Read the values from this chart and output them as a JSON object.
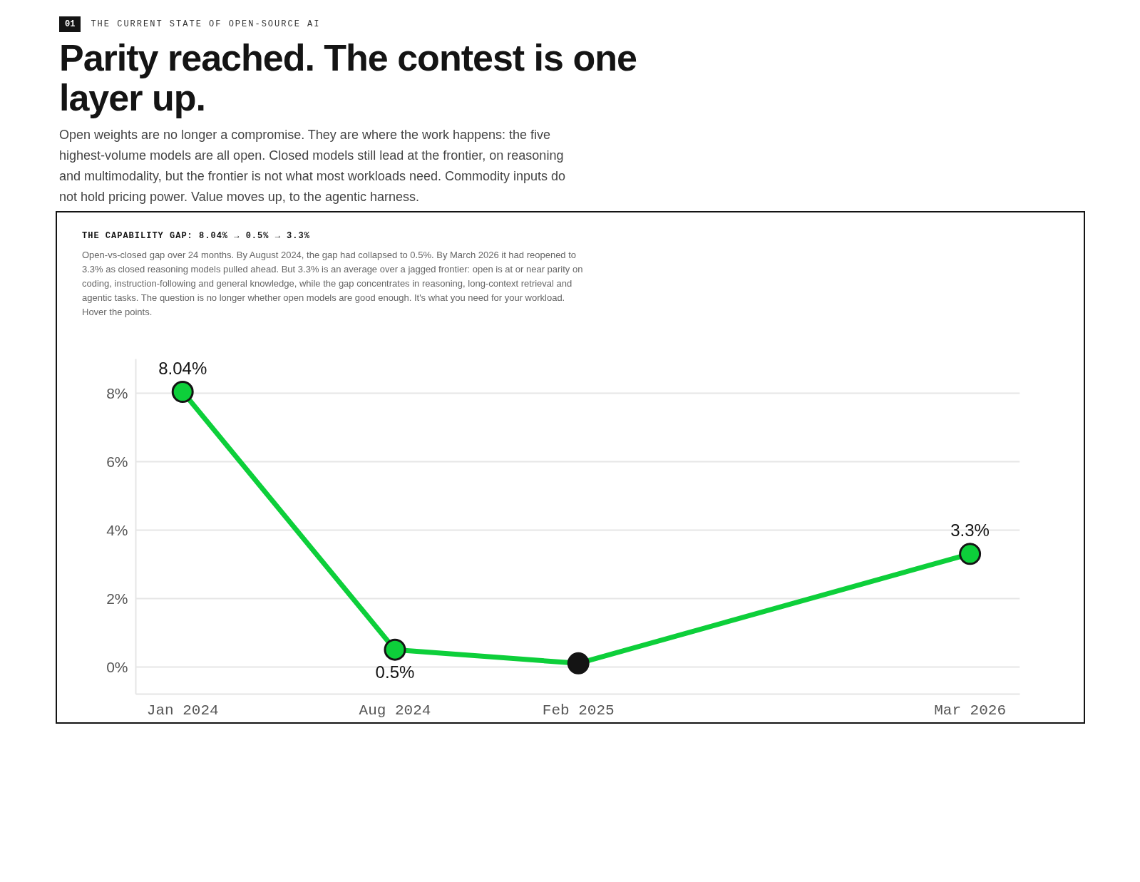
{
  "chart_data": {
    "type": "line",
    "title": "Parity reached. The contest is one layer up.",
    "subtitle": "Open weights are no longer a compromise. They are where the work happens: the five highest-volume models are all open. Closed models still lead at the frontier, on reasoning and multimodality, but the frontier is not what most workloads need. Commodity inputs do not hold pricing power. Value moves up, to the agentic harness.",
    "annotations": [
      "01",
      "THE CURRENT STATE OF OPEN-SOURCE AI",
      "THE CAPABILITY GAP: 8.04% → 0.5% → 3.3%",
      "Open-vs-closed gap over 24 months. By August 2024, the gap had collapsed to 0.5%. By March 2026 it had reopened to 3.3% as closed reasoning models pulled ahead. But 3.3% is an average over a jagged frontier: open is at or near parity on coding, instruction-following and general knowledge, while the gap concentrates in reasoning, long-context retrieval and agentic tasks. The question is no longer whether open models are good enough. It's what you need for your workload. Hover the points."
    ],
    "x": [
      "2024-01",
      "2024-08",
      "2025-02",
      "2026-03"
    ],
    "series": [
      {
        "color": "#0dcf3a",
        "colors": [
          "#0dcf3a",
          "#0dcf3a",
          "#141414",
          "#0dcf3a"
        ],
        "values": [
          8.04,
          0.5,
          0.1,
          3.3
        ],
        "value_labels": [
          "8.04%",
          "0.5%",
          null,
          "3.3%"
        ]
      }
    ],
    "xlim": [
      "2023-11-15",
      "2026-04-20"
    ],
    "xticks": [
      {
        "value": "2024-01",
        "label": "Jan 2024"
      },
      {
        "value": "2024-08",
        "label": "Aug 2024"
      },
      {
        "value": "2025-02",
        "label": "Feb 2025"
      },
      {
        "value": "2026-03",
        "label": "Mar 2026"
      }
    ],
    "ylim": [
      -0.8,
      9
    ],
    "yticks": [
      {
        "value": 0,
        "label": "0%"
      },
      {
        "value": 2,
        "label": "2%"
      },
      {
        "value": 4,
        "label": "4%"
      },
      {
        "value": 6,
        "label": "6%"
      },
      {
        "value": 8,
        "label": "8%"
      }
    ],
    "grid": "y",
    "marker": "circle",
    "line_style": "solid"
  }
}
